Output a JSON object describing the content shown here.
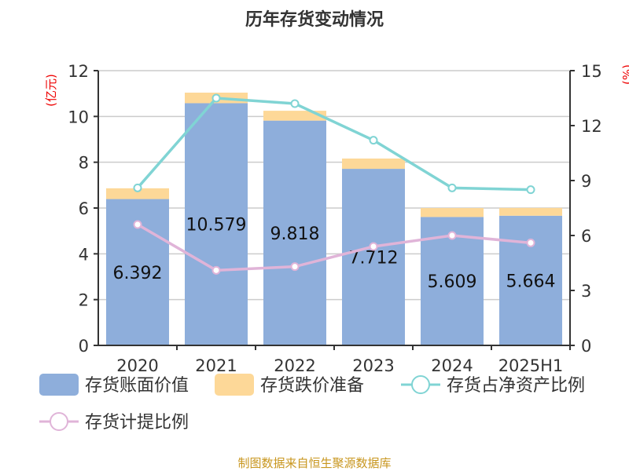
{
  "chart_data": {
    "type": "bar",
    "title": "历年存货变动情况",
    "categories": [
      "2020",
      "2021",
      "2022",
      "2023",
      "2024",
      "2025H1"
    ],
    "ylabel": "(亿元)",
    "y2label": "(%)",
    "ylim": [
      0,
      12
    ],
    "y2lim": [
      0,
      15
    ],
    "yticks": [
      "0",
      "2",
      "4",
      "6",
      "8",
      "10",
      "12"
    ],
    "y2ticks": [
      "0",
      "3",
      "6",
      "9",
      "12",
      "15"
    ],
    "series": [
      {
        "name": "存货账面价值",
        "type": "bar",
        "axis": "left",
        "color": "#8eaedb",
        "values": [
          6.392,
          10.579,
          9.818,
          7.712,
          5.609,
          5.664
        ],
        "labels": [
          "6.392",
          "10.579",
          "9.818",
          "7.712",
          "5.609",
          "5.664"
        ]
      },
      {
        "name": "存货跌价准备",
        "type": "bar",
        "axis": "left",
        "color": "#fdd898",
        "values": [
          0.47,
          0.46,
          0.43,
          0.45,
          0.39,
          0.34
        ]
      },
      {
        "name": "存货占净资产比例",
        "type": "line",
        "axis": "right",
        "color": "#80d4d4",
        "values": [
          8.6,
          13.5,
          13.2,
          11.2,
          8.6,
          8.5
        ]
      },
      {
        "name": "存货计提比例",
        "type": "line",
        "axis": "right",
        "color": "#e0b4d8",
        "values": [
          6.6,
          4.1,
          4.3,
          5.4,
          6.0,
          5.6
        ]
      }
    ],
    "legend_position": "bottom",
    "source": "制图数据来自恒生聚源数据库"
  }
}
